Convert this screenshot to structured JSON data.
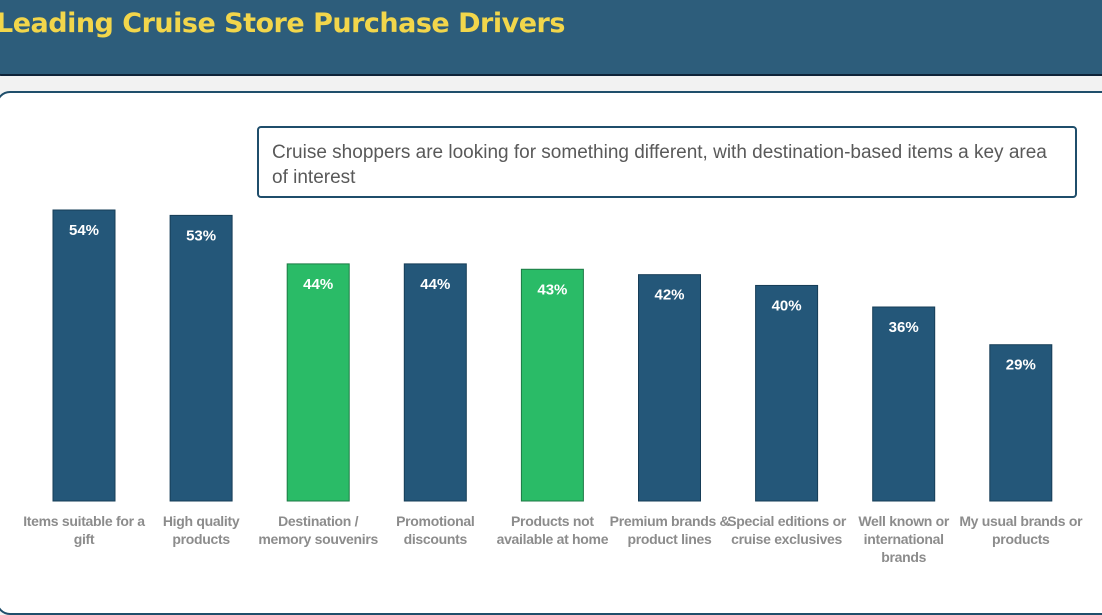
{
  "header": {
    "title": "Leading Cruise Store Purchase Drivers"
  },
  "callout": {
    "text": "Cruise shoppers are looking for something different, with destination-based items a key area of interest"
  },
  "colors": {
    "primary": "#245779",
    "highlight": "#2abb67",
    "title": "#f2d64b",
    "header_bg": "#2d5d7b"
  },
  "chart_data": {
    "type": "bar",
    "categories": [
      "Items suitable for a gift",
      "High quality products",
      "Destination / memory souvenirs",
      "Promotional discounts",
      "Products not available at home",
      "Premium brands & product lines",
      "Special editions or cruise exclusives",
      "Well known or international brands",
      "My usual brands or products"
    ],
    "values": [
      54,
      53,
      44,
      44,
      43,
      42,
      40,
      36,
      29
    ],
    "data_labels": [
      "54%",
      "53%",
      "44%",
      "44%",
      "43%",
      "42%",
      "40%",
      "36%",
      "29%"
    ],
    "highlighted": [
      false,
      false,
      true,
      false,
      true,
      false,
      false,
      false,
      false
    ],
    "title": "",
    "xlabel": "",
    "ylabel": "",
    "ylim": [
      0,
      54
    ],
    "grid": false,
    "legend": "none"
  }
}
